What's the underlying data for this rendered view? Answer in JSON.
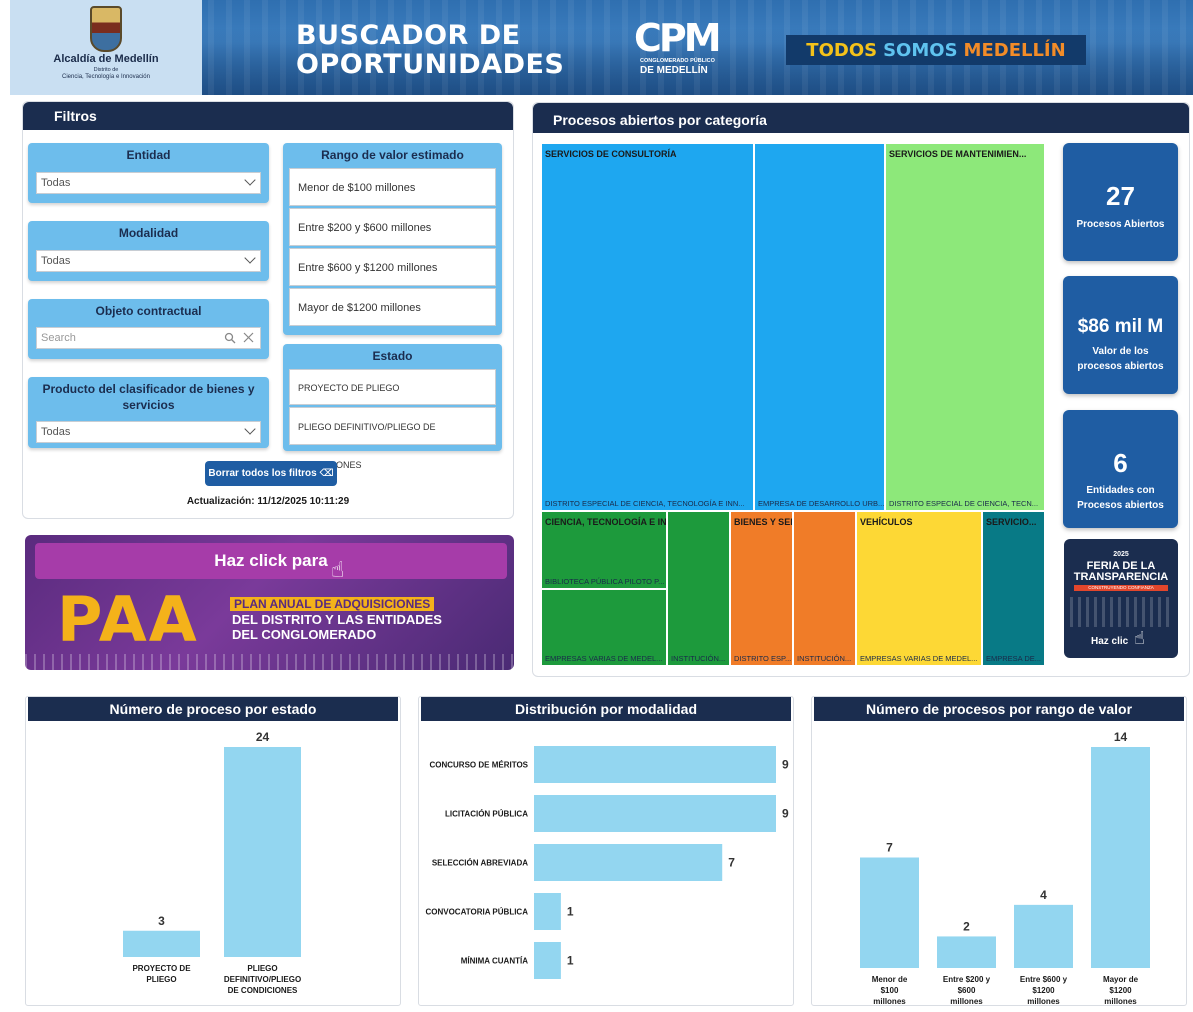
{
  "header": {
    "logo": {
      "title": "Alcaldía de Medellín",
      "sub1": "Distrito de",
      "sub2": "Ciencia, Tecnología e Innovación"
    },
    "title_line1": "BUSCADOR DE",
    "title_line2": "OPORTUNIDADES",
    "cpm": {
      "mark": "CPM",
      "sub1": "CONGLOMERADO PÚBLICO",
      "sub2": "DE MEDELLÍN"
    },
    "slogan": {
      "a": "TODOS",
      "b": "SOMOS",
      "c": "MEDELLÍN"
    }
  },
  "filtros": {
    "title": "Filtros",
    "entidad": {
      "title": "Entidad",
      "value": "Todas"
    },
    "modalidad": {
      "title": "Modalidad",
      "value": "Todas"
    },
    "objeto": {
      "title": "Objeto contractual",
      "placeholder": "Search"
    },
    "producto": {
      "title_line1": "Producto del clasificador de bienes y",
      "title_line2": "servicios",
      "value": "Todas"
    },
    "rango": {
      "title": "Rango de valor estimado",
      "options": [
        "Menor de $100 millones",
        "Entre $200 y $600 millones",
        "Entre $600 y $1200 millones",
        "Mayor de $1200 millones"
      ]
    },
    "estado": {
      "title": "Estado",
      "options": [
        "PROYECTO DE PLIEGO",
        "PLIEGO DEFINITIVO/PLIEGO DE CONDICIONES"
      ]
    },
    "borrar": "Borrar todos los filtros ⌫",
    "actualizacion": "Actualización: 11/12/2025 10:11:29"
  },
  "paa": {
    "click": "Haz click para",
    "big": "PAA",
    "line1": "PLAN ANUAL DE ADQUISICIONES",
    "line2": "DEL DISTRITO Y LAS ENTIDADES",
    "line3": "DEL CONGLOMERADO"
  },
  "categoria": {
    "title": "Procesos abiertos por categoría",
    "tiles": [
      {
        "label": "SERVICIOS DE CONSULTORÍA",
        "sub": "DISTRITO ESPECIAL DE CIENCIA, TECNOLOGÍA E INN...",
        "color": "#1ea7f0"
      },
      {
        "label": "",
        "sub": "EMPRESA DE DESARROLLO URB...",
        "color": "#1ea7f0"
      },
      {
        "label": "SERVICIOS DE MANTENIMIEN...",
        "sub": "DISTRITO ESPECIAL DE CIENCIA, TECN...",
        "color": "#8de87a"
      },
      {
        "label": "CIENCIA, TECNOLOGÍA E INNOVACI...",
        "sub": "BIBLIOTECA PÚBLICA PILOTO P...",
        "color": "#1d9a3c"
      },
      {
        "label": "",
        "sub": "EMPRESAS VARIAS DE MEDEL...",
        "color": "#1d9a3c"
      },
      {
        "label": "",
        "sub": "INSTITUCIÓN...",
        "color": "#1d9a3c"
      },
      {
        "label": "BIENES Y SERVICIOS D...",
        "sub": "DISTRITO ESP...",
        "color": "#f07c28"
      },
      {
        "label": "",
        "sub": "INSTITUCIÓN...",
        "color": "#f07c28"
      },
      {
        "label": "VEHÍCULOS",
        "sub": "EMPRESAS VARIAS DE MEDEL...",
        "color": "#fdd835"
      },
      {
        "label": "SERVICIO...",
        "sub": "EMPRESA DE...",
        "color": "#087a86"
      }
    ],
    "kpis": [
      {
        "value": "27",
        "label": "Procesos Abiertos"
      },
      {
        "value": "$86 mil M",
        "label": "Valor de los procesos abiertos"
      },
      {
        "value": "6",
        "label": "Entidades con Procesos abiertos"
      }
    ],
    "feria": {
      "year": "2025",
      "t1": "FERIA DE LA",
      "t2": "TRANSPARENCIA",
      "strip": "CONSTRUYENDO CONFIANZA",
      "click": "Haz clic"
    }
  },
  "chart_data": [
    {
      "type": "bar",
      "title": "Número de proceso por estado",
      "categories": [
        "PROYECTO DE PLIEGO",
        "PLIEGO DEFINITIVO/PLIEGO DE CONDICIONES"
      ],
      "values": [
        3,
        24
      ],
      "orientation": "vertical",
      "ylim": [
        0,
        24
      ],
      "color": "#93d6f0"
    },
    {
      "type": "bar",
      "title": "Distribución por modalidad",
      "categories": [
        "CONCURSO DE MÉRITOS",
        "LICITACIÓN PÚBLICA",
        "SELECCIÓN ABREVIADA",
        "CONVOCATORIA PÚBLICA",
        "MÍNIMA CUANTÍA"
      ],
      "values": [
        9,
        9,
        7,
        1,
        1
      ],
      "orientation": "horizontal",
      "xlim": [
        0,
        9
      ],
      "color": "#93d6f0"
    },
    {
      "type": "bar",
      "title": "Número de procesos por rango de valor",
      "categories": [
        "Menor de $100 millones",
        "Entre $200 y $600 millones",
        "Entre $600 y $1200 millones",
        "Mayor de $1200 millones"
      ],
      "values": [
        7,
        2,
        4,
        14
      ],
      "orientation": "vertical",
      "ylim": [
        0,
        14
      ],
      "color": "#93d6f0"
    }
  ]
}
